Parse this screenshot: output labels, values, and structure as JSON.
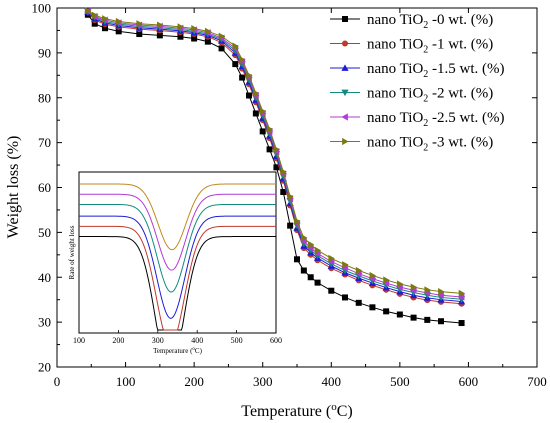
{
  "chart_data": [
    {
      "type": "line",
      "xlabel": "Temperature (°C)",
      "ylabel": "Weight loss (%)",
      "xlim": [
        0,
        700
      ],
      "ylim": [
        20,
        100
      ],
      "xticks": [
        0,
        100,
        200,
        300,
        400,
        500,
        600,
        700
      ],
      "yticks": [
        20,
        30,
        40,
        50,
        60,
        70,
        80,
        90,
        100
      ],
      "legend": {
        "position": "top-right"
      },
      "series": [
        {
          "name": "nano TiO2 -0 wt. (%)",
          "name_base": "nano TiO",
          "name_sub": "2",
          "name_tail": " -0 wt. (%)",
          "color": "#000000",
          "marker": "square",
          "x": [
            45,
            55,
            70,
            90,
            120,
            150,
            180,
            200,
            220,
            240,
            260,
            270,
            280,
            290,
            300,
            310,
            320,
            330,
            340,
            350,
            360,
            370,
            380,
            400,
            420,
            440,
            460,
            480,
            500,
            520,
            540,
            560,
            590
          ],
          "y": [
            98.5,
            96.5,
            95.5,
            94.8,
            94.2,
            93.9,
            93.6,
            93.2,
            92.5,
            91.0,
            87.5,
            84.5,
            80.5,
            76.5,
            72.5,
            68.5,
            64.5,
            59.0,
            51.5,
            44.0,
            41.5,
            40.0,
            38.8,
            37.0,
            35.5,
            34.3,
            33.3,
            32.4,
            31.7,
            31.0,
            30.5,
            30.2,
            29.8
          ]
        },
        {
          "name": "nano TiO2 -1 wt. (%)",
          "name_base": "nano TiO",
          "name_sub": "2",
          "name_tail": " -1 wt. (%)",
          "color": "#c0392b",
          "marker": "circle",
          "x": [
            45,
            55,
            70,
            90,
            120,
            150,
            180,
            200,
            220,
            240,
            260,
            270,
            280,
            290,
            300,
            310,
            320,
            330,
            340,
            350,
            360,
            370,
            380,
            400,
            420,
            440,
            460,
            480,
            500,
            520,
            540,
            560,
            590
          ],
          "y": [
            99.0,
            97.3,
            96.4,
            95.8,
            95.3,
            95.0,
            94.6,
            94.2,
            93.6,
            92.3,
            89.5,
            86.5,
            83.0,
            79.0,
            75.0,
            71.0,
            66.5,
            61.5,
            56.0,
            50.5,
            46.5,
            45.0,
            43.8,
            42.0,
            40.6,
            39.3,
            38.2,
            37.2,
            36.3,
            35.5,
            34.9,
            34.5,
            34.1
          ]
        },
        {
          "name": "nano TiO2 -1.5 wt. (%)",
          "name_base": "nano TiO",
          "name_sub": "2",
          "name_tail": " -1.5 wt. (%)",
          "color": "#1c1cd6",
          "marker": "triangle-up",
          "x": [
            45,
            55,
            70,
            90,
            120,
            150,
            180,
            200,
            220,
            240,
            260,
            270,
            280,
            290,
            300,
            310,
            320,
            330,
            340,
            350,
            360,
            370,
            380,
            400,
            420,
            440,
            460,
            480,
            500,
            520,
            540,
            560,
            590
          ],
          "y": [
            99.1,
            97.6,
            96.7,
            96.1,
            95.6,
            95.3,
            94.9,
            94.5,
            93.9,
            92.7,
            90.0,
            87.0,
            83.5,
            79.5,
            75.5,
            71.5,
            67.0,
            62.0,
            56.5,
            51.0,
            47.0,
            45.5,
            44.3,
            42.5,
            41.0,
            39.8,
            38.7,
            37.7,
            36.8,
            36.0,
            35.4,
            35.0,
            34.6
          ]
        },
        {
          "name": "nano TiO2 -2 wt. (%)",
          "name_base": "nano TiO",
          "name_sub": "2",
          "name_tail": " -2 wt. (%)",
          "color": "#138a7e",
          "marker": "triangle-down",
          "x": [
            45,
            55,
            70,
            90,
            120,
            150,
            180,
            200,
            220,
            240,
            260,
            270,
            280,
            290,
            300,
            310,
            320,
            330,
            340,
            350,
            360,
            370,
            380,
            400,
            420,
            440,
            460,
            480,
            500,
            520,
            540,
            560,
            590
          ],
          "y": [
            99.2,
            97.9,
            97.0,
            96.4,
            95.9,
            95.6,
            95.2,
            94.8,
            94.2,
            93.0,
            90.5,
            87.5,
            84.0,
            80.0,
            76.0,
            72.0,
            67.5,
            62.5,
            57.0,
            51.5,
            47.5,
            46.0,
            44.8,
            43.0,
            41.5,
            40.3,
            39.2,
            38.2,
            37.3,
            36.6,
            36.0,
            35.5,
            35.1
          ]
        },
        {
          "name": "nano TiO2 -2.5 wt. (%)",
          "name_base": "nano TiO",
          "name_sub": "2",
          "name_tail": " -2.5 wt. (%)",
          "color": "#b23ad6",
          "marker": "triangle-left",
          "x": [
            45,
            55,
            70,
            90,
            120,
            150,
            180,
            200,
            220,
            240,
            260,
            270,
            280,
            290,
            300,
            310,
            320,
            330,
            340,
            350,
            360,
            370,
            380,
            400,
            420,
            440,
            460,
            480,
            500,
            520,
            540,
            560,
            590
          ],
          "y": [
            99.3,
            98.1,
            97.3,
            96.7,
            96.2,
            95.9,
            95.5,
            95.1,
            94.5,
            93.3,
            91.0,
            88.0,
            84.5,
            80.5,
            76.5,
            72.5,
            68.0,
            63.0,
            57.5,
            52.0,
            48.0,
            46.5,
            45.3,
            43.5,
            42.1,
            40.8,
            39.7,
            38.7,
            37.8,
            37.1,
            36.5,
            36.0,
            35.6
          ]
        },
        {
          "name": "nano TiO2 -3 wt. (%)",
          "name_base": "nano TiO",
          "name_sub": "2",
          "name_tail": " -3 wt. (%)",
          "color": "#7a7a10",
          "marker": "triangle-right",
          "x": [
            45,
            55,
            70,
            90,
            120,
            150,
            180,
            200,
            220,
            240,
            260,
            270,
            280,
            290,
            300,
            310,
            320,
            330,
            340,
            350,
            360,
            370,
            380,
            400,
            420,
            440,
            460,
            480,
            500,
            520,
            540,
            560,
            590
          ],
          "y": [
            99.4,
            98.4,
            97.6,
            97.0,
            96.5,
            96.2,
            95.8,
            95.4,
            94.8,
            93.7,
            91.5,
            88.5,
            85.0,
            81.0,
            77.0,
            73.0,
            68.5,
            63.5,
            58.0,
            52.5,
            48.8,
            47.3,
            46.0,
            44.2,
            42.8,
            41.5,
            40.4,
            39.4,
            38.5,
            37.8,
            37.2,
            36.8,
            36.4
          ]
        }
      ]
    },
    {
      "type": "line",
      "title": "",
      "xlabel": "Temperature (°C)",
      "ylabel": "Rate of weight loss",
      "xlim": [
        100,
        600
      ],
      "xticks": [
        100,
        200,
        300,
        400,
        500,
        600
      ],
      "yticks_shown": false,
      "series": [
        {
          "color": "#000000",
          "baseline": 0.0,
          "depth": 0.94,
          "center": 330,
          "width": 50
        },
        {
          "color": "#c0392b",
          "baseline": 0.07,
          "depth": 0.81,
          "center": 332,
          "width": 50
        },
        {
          "color": "#1c1cd6",
          "baseline": 0.14,
          "depth": 0.7,
          "center": 333,
          "width": 50
        },
        {
          "color": "#138a7e",
          "baseline": 0.22,
          "depth": 0.6,
          "center": 334,
          "width": 50
        },
        {
          "color": "#b23ad6",
          "baseline": 0.29,
          "depth": 0.52,
          "center": 335,
          "width": 50
        },
        {
          "color": "#c08a20",
          "baseline": 0.36,
          "depth": 0.45,
          "center": 336,
          "width": 50
        }
      ]
    }
  ]
}
